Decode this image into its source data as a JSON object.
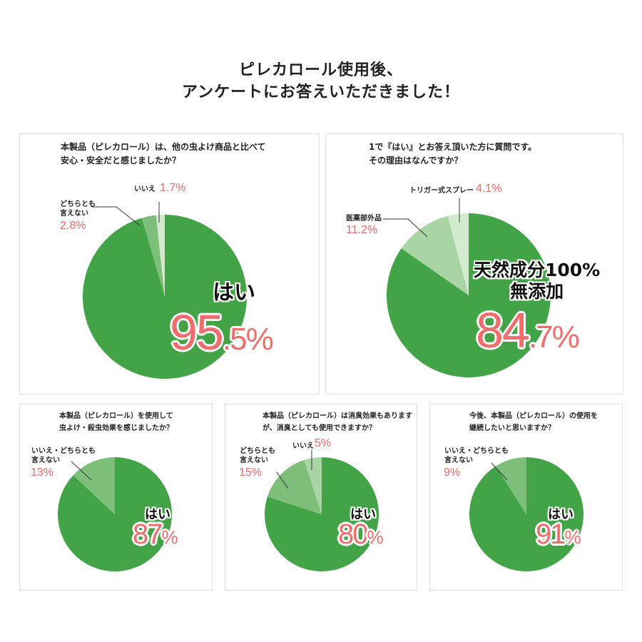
{
  "header": {
    "line1": "ピレカロール使用後、",
    "line2": "アンケートにお答えいただきました！"
  },
  "colors": {
    "main": "#43a447",
    "mid": "#7dbe7a",
    "light": "#a9d5a5",
    "lightest": "#d3eacf",
    "pct": "#e76a6a"
  },
  "chart_data": [
    {
      "type": "pie",
      "title": "本製品（ピレカロール）は、他の虫よけ商品と比べて 安心・安全だと感じましたか？",
      "title_lines": [
        "本製品（ピレカロール）は、他の虫よけ商品と比べて",
        "安心・安全だと感じましたか？"
      ],
      "slices": [
        {
          "label": "はい",
          "value": 95.5,
          "int": "95",
          "dec": ".5%",
          "color": "main"
        },
        {
          "label_lines": [
            "どちらとも",
            "言えない"
          ],
          "value": 2.8,
          "pct": "2.8%",
          "color": "mid"
        },
        {
          "label": "いいえ",
          "value": 1.7,
          "pct": "1.7%",
          "color": "lightest"
        }
      ]
    },
    {
      "type": "pie",
      "title_lines": [
        "1で『はい』とお答え頂いた方に質問です。",
        "その理由はなんですか？"
      ],
      "slices": [
        {
          "label_lines": [
            "天然成分100%",
            "無添加"
          ],
          "value": 84.7,
          "int": "84",
          "dec": ".7%",
          "color": "main"
        },
        {
          "label": "医薬部外品",
          "value": 11.2,
          "pct": "11.2%",
          "color": "light"
        },
        {
          "label": "トリガー式スプレー",
          "value": 4.1,
          "pct": "4.1%",
          "color": "lightest"
        }
      ]
    },
    {
      "type": "pie",
      "title_lines": [
        "本製品（ピレカロール）を使用して",
        "虫よけ・殺虫効果を感じましたか？"
      ],
      "slices": [
        {
          "label": "はい",
          "value": 87,
          "int": "87",
          "dec": "%",
          "color": "main"
        },
        {
          "label_lines": [
            "いいえ・どちらとも",
            "言えない"
          ],
          "value": 13,
          "pct": "13%",
          "color": "mid"
        }
      ]
    },
    {
      "type": "pie",
      "title_lines": [
        "本製品（ピレカロール）は消臭効果もあります",
        "が、消臭としても使用できますか？"
      ],
      "slices": [
        {
          "label": "はい",
          "value": 80,
          "int": "80",
          "dec": "%",
          "color": "main"
        },
        {
          "label_lines": [
            "どちらとも",
            "言えない"
          ],
          "value": 15,
          "pct": "15%",
          "color": "mid"
        },
        {
          "label": "いいえ",
          "value": 5,
          "pct": "5%",
          "color": "light"
        }
      ]
    },
    {
      "type": "pie",
      "title_lines": [
        "今後、本製品（ピレカロール）の使用を",
        "継続したいと思いますか？"
      ],
      "slices": [
        {
          "label": "はい",
          "value": 91,
          "int": "91",
          "dec": "%",
          "color": "main"
        },
        {
          "label_lines": [
            "いいえ・どちらとも",
            "言えない"
          ],
          "value": 9,
          "pct": "9%",
          "color": "mid"
        }
      ]
    }
  ]
}
